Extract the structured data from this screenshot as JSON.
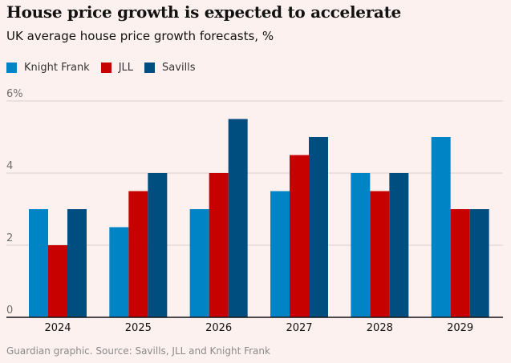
{
  "title": "House price growth is expected to accelerate",
  "subtitle": "UK average house price growth forecasts, %",
  "footer": "Guardian graphic. Source: Savills, JLL and Knight Frank",
  "chart_data": {
    "type": "bar",
    "title": "House price growth is expected to accelerate",
    "subtitle": "UK average house price growth forecasts, %",
    "xlabel": "",
    "ylabel": "%",
    "categories": [
      "2024",
      "2025",
      "2026",
      "2027",
      "2028",
      "2029"
    ],
    "series": [
      {
        "name": "Knight Frank",
        "color": "#0084c6",
        "values": [
          3,
          2.5,
          3,
          3.5,
          4,
          5
        ]
      },
      {
        "name": "JLL",
        "color": "#c70000",
        "values": [
          2,
          3.5,
          4,
          4.5,
          3.5,
          3
        ]
      },
      {
        "name": "Savills",
        "color": "#004e7f",
        "values": [
          3,
          4,
          5.5,
          5,
          4,
          3
        ]
      }
    ],
    "ylim": [
      0,
      6
    ],
    "yticks": [
      0,
      2,
      4,
      6
    ],
    "ytick_labels": [
      "0",
      "2",
      "4",
      "6%"
    ],
    "grid": true,
    "legend": "top-left"
  }
}
